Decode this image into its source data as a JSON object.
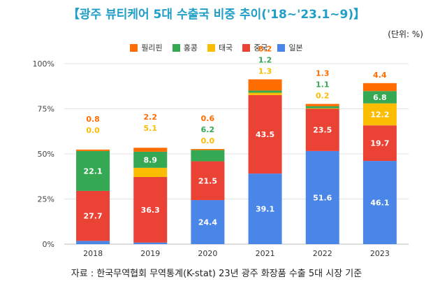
{
  "title": "【광주 뷰티케어 5대 수출국 비중 추이('18~'23.1~9)】",
  "unit": "(단위: %)",
  "source": "자료 : 한국무역협회 무역통계(K-stat) 23년 광주 화장품 수출 5대 시장 기준",
  "chart_data": {
    "type": "bar",
    "stacked": true,
    "categories": [
      "2018",
      "2019",
      "2020",
      "2021",
      "2022",
      "2023"
    ],
    "ylim": [
      0,
      100
    ],
    "yticks": [
      "0%",
      "25%",
      "50%",
      "75%",
      "100%"
    ],
    "grid": true,
    "legend_position": "top",
    "series": [
      {
        "name": "일본",
        "color": "#4a86e8",
        "label_color": "#ffffff",
        "values": [
          1.8,
          0.9,
          24.4,
          39.1,
          51.6,
          46.1
        ]
      },
      {
        "name": "중국",
        "color": "#ea4335",
        "label_color": "#ffffff",
        "values": [
          27.7,
          36.3,
          21.5,
          43.5,
          23.5,
          19.7
        ]
      },
      {
        "name": "태국",
        "color": "#fbbc04",
        "label_color": "#fbbc04",
        "values": [
          0.0,
          5.1,
          0.0,
          1.3,
          0.2,
          12.2
        ]
      },
      {
        "name": "홍콩",
        "color": "#34a853",
        "label_color": "#34a853",
        "values": [
          22.1,
          8.9,
          6.2,
          1.2,
          1.1,
          6.8
        ]
      },
      {
        "name": "필리핀",
        "color": "#ff6d01",
        "label_color": "#ff6d01",
        "values": [
          0.8,
          2.2,
          0.6,
          6.2,
          1.3,
          4.4
        ]
      }
    ],
    "data_labels": [
      [
        "1.8",
        "0.9",
        "24.4",
        "39.1",
        "51.6",
        "46.1"
      ],
      [
        "27.7",
        "36.3",
        "21.5",
        "43.5",
        "23.5",
        "19.7"
      ],
      [
        "0.0",
        "5.1",
        "0.0",
        "1.3",
        "0.2",
        "12.2"
      ],
      [
        "22.1",
        "8.9",
        "6.2",
        "1.2",
        "1.1",
        "6.8"
      ],
      [
        "0.8",
        "2.2",
        "0.6",
        "6.2",
        "1.3",
        "4.4"
      ]
    ],
    "legend_order": [
      "필리핀",
      "홍콩",
      "태국",
      "중국",
      "일본"
    ]
  }
}
